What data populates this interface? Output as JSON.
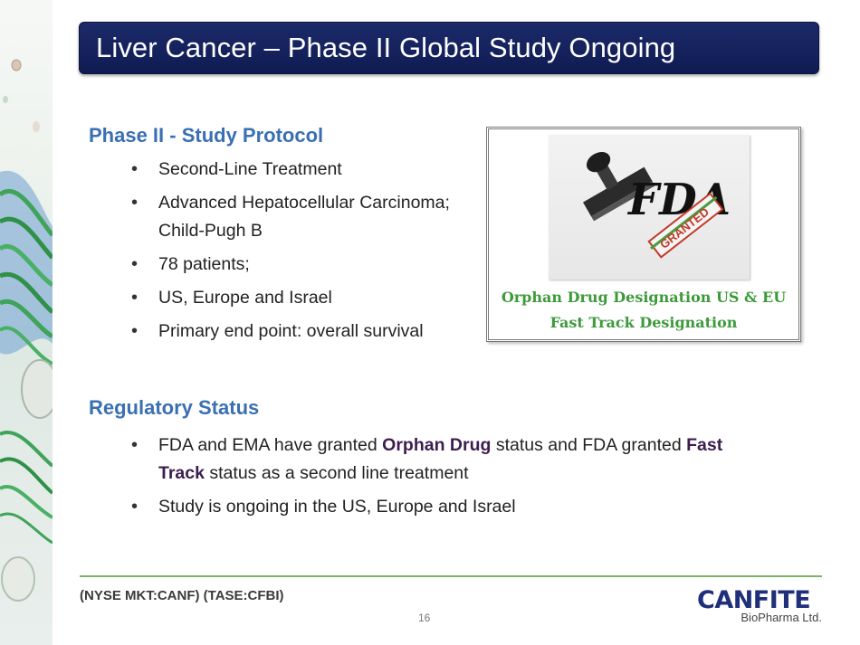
{
  "title": "Liver Cancer – Phase II Global Study Ongoing",
  "protocol": {
    "heading": "Phase II -  Study Protocol",
    "items": [
      {
        "line1": "Second-Line Treatment",
        "line2": ""
      },
      {
        "line1": "Advanced Hepatocellular Carcinoma;",
        "line2": "Child-Pugh B"
      },
      {
        "line1": "78 patients;",
        "line2": ""
      },
      {
        "line1": "US, Europe and Israel",
        "line2": ""
      },
      {
        "line1": "Primary end point: overall survival",
        "line2": ""
      }
    ]
  },
  "regulatory": {
    "heading": "Regulatory  Status",
    "item1": {
      "part1": "FDA and EMA have granted ",
      "bold1": "Orphan Drug",
      "part2": " status and FDA granted ",
      "bold2": "Fast",
      "bold3": "Track",
      "part3": " status as a second line treatment"
    },
    "item2": " Study is ongoing in the US, Europe and Israel"
  },
  "fda_box": {
    "logo_text": "FDA",
    "stamp_text": "GRANTED",
    "caption1": "Orphan Drug Designation US & EU",
    "caption2": "Fast Track Designation"
  },
  "footer": {
    "ticker": "(NYSE MKT:CANF)  (TASE:CFBI)",
    "page_number": "16",
    "logo_main": "CANFITE",
    "logo_sub": "BioPharma Ltd."
  },
  "colors": {
    "title_bg": "#142062",
    "heading": "#3a6fb3",
    "emphasis": "#3d1d4f",
    "caption": "#3d9a3a",
    "footer_line": "#7fb069",
    "logo": "#1f2f7a"
  }
}
